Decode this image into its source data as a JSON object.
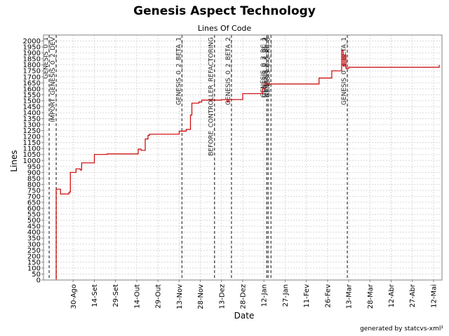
{
  "chart_data": {
    "type": "line",
    "title": "Genesis Aspect Technology",
    "subtitle": "Lines Of Code",
    "xlabel": "Date",
    "ylabel": "Lines",
    "footer": "generated by statcvs-xml²",
    "ylim": [
      0,
      2050
    ],
    "yticks": [
      0,
      50,
      100,
      150,
      200,
      250,
      300,
      350,
      400,
      450,
      500,
      550,
      600,
      650,
      700,
      750,
      800,
      850,
      900,
      950,
      1000,
      1050,
      1100,
      1150,
      1200,
      1250,
      1300,
      1350,
      1400,
      1450,
      1500,
      1550,
      1600,
      1650,
      1700,
      1750,
      1800,
      1850,
      1900,
      1950,
      2000
    ],
    "xlim": [
      "2004-08-09",
      "2005-05-18"
    ],
    "xticks": [
      {
        "date": "2004-08-30",
        "label": "30-Ago"
      },
      {
        "date": "2004-09-14",
        "label": "14-Set"
      },
      {
        "date": "2004-09-29",
        "label": "29-Set"
      },
      {
        "date": "2004-10-14",
        "label": "14-Out"
      },
      {
        "date": "2004-10-29",
        "label": "29-Out"
      },
      {
        "date": "2004-11-13",
        "label": "13-Nov"
      },
      {
        "date": "2004-11-28",
        "label": "28-Nov"
      },
      {
        "date": "2004-12-13",
        "label": "13-Dez"
      },
      {
        "date": "2004-12-28",
        "label": "28-Dez"
      },
      {
        "date": "2005-01-12",
        "label": "12-Jan"
      },
      {
        "date": "2005-01-27",
        "label": "27-Jan"
      },
      {
        "date": "2005-02-11",
        "label": "11-Fev"
      },
      {
        "date": "2005-02-26",
        "label": "26-Fev"
      },
      {
        "date": "2005-03-13",
        "label": "13-Mar"
      },
      {
        "date": "2005-03-28",
        "label": "28-Mar"
      },
      {
        "date": "2005-04-12",
        "label": "12-Abr"
      },
      {
        "date": "2005-04-27",
        "label": "27-Abr"
      },
      {
        "date": "2005-05-12",
        "label": "12-Mai"
      }
    ],
    "grid": true,
    "series": [
      {
        "color": "#cc0000",
        "points": [
          [
            "2004-08-18",
            0
          ],
          [
            "2004-08-18",
            760
          ],
          [
            "2004-08-21",
            760
          ],
          [
            "2004-08-21",
            720
          ],
          [
            "2004-08-27",
            720
          ],
          [
            "2004-08-27",
            735
          ],
          [
            "2004-08-28",
            735
          ],
          [
            "2004-08-28",
            900
          ],
          [
            "2004-09-01",
            900
          ],
          [
            "2004-09-01",
            930
          ],
          [
            "2004-09-04",
            930
          ],
          [
            "2004-09-04",
            920
          ],
          [
            "2004-09-05",
            920
          ],
          [
            "2004-09-05",
            980
          ],
          [
            "2004-09-14",
            980
          ],
          [
            "2004-09-14",
            1050
          ],
          [
            "2004-09-23",
            1050
          ],
          [
            "2004-09-23",
            1055
          ],
          [
            "2004-10-15",
            1055
          ],
          [
            "2004-10-15",
            1095
          ],
          [
            "2004-10-17",
            1095
          ],
          [
            "2004-10-17",
            1085
          ],
          [
            "2004-10-20",
            1085
          ],
          [
            "2004-10-20",
            1180
          ],
          [
            "2004-10-22",
            1180
          ],
          [
            "2004-10-22",
            1210
          ],
          [
            "2004-10-23",
            1210
          ],
          [
            "2004-10-23",
            1220
          ],
          [
            "2004-11-13",
            1220
          ],
          [
            "2004-11-13",
            1245
          ],
          [
            "2004-11-18",
            1245
          ],
          [
            "2004-11-18",
            1260
          ],
          [
            "2004-11-21",
            1260
          ],
          [
            "2004-11-21",
            1380
          ],
          [
            "2004-11-22",
            1380
          ],
          [
            "2004-11-22",
            1480
          ],
          [
            "2004-11-27",
            1480
          ],
          [
            "2004-11-27",
            1490
          ],
          [
            "2004-11-29",
            1490
          ],
          [
            "2004-11-29",
            1505
          ],
          [
            "2004-12-13",
            1505
          ],
          [
            "2004-12-13",
            1510
          ],
          [
            "2004-12-17",
            1510
          ],
          [
            "2004-12-17",
            1490
          ],
          [
            "2004-12-18",
            1490
          ],
          [
            "2004-12-18",
            1510
          ],
          [
            "2004-12-28",
            1510
          ],
          [
            "2004-12-28",
            1560
          ],
          [
            "2005-01-11",
            1560
          ],
          [
            "2005-01-11",
            1600
          ],
          [
            "2005-01-13",
            1600
          ],
          [
            "2005-01-13",
            1650
          ],
          [
            "2005-01-14",
            1650
          ],
          [
            "2005-01-14",
            1640
          ],
          [
            "2005-02-20",
            1640
          ],
          [
            "2005-02-20",
            1690
          ],
          [
            "2005-03-01",
            1690
          ],
          [
            "2005-03-01",
            1750
          ],
          [
            "2005-03-08",
            1750
          ],
          [
            "2005-03-08",
            1920
          ],
          [
            "2005-03-09",
            1920
          ],
          [
            "2005-03-09",
            1790
          ],
          [
            "2005-03-10",
            1790
          ],
          [
            "2005-03-10",
            1880
          ],
          [
            "2005-03-11",
            1880
          ],
          [
            "2005-03-11",
            1770
          ],
          [
            "2005-03-13",
            1770
          ],
          [
            "2005-03-13",
            1780
          ],
          [
            "2005-05-16",
            1780
          ],
          [
            "2005-05-16",
            1800
          ]
        ]
      }
    ],
    "markers": [
      {
        "date": "2004-08-13",
        "label": "GENESIS_0_1"
      },
      {
        "date": "2004-08-18",
        "label": "IMPORT_GENESIS_0_2_DEV"
      },
      {
        "date": "2004-11-15",
        "label": "GENESIS_0_2_BETA_1"
      },
      {
        "date": "2004-12-08",
        "label": "BEFORE_CONTROLLER_REFACTORING"
      },
      {
        "date": "2004-12-20",
        "label": "GENESIS_0_2_BETA_2"
      },
      {
        "date": "2005-01-14",
        "label": "GENESIS_0_2_RC_1"
      },
      {
        "date": "2005-01-15",
        "label": "GENESIS_0_2_RC_2"
      },
      {
        "date": "2005-01-17",
        "label": "GENESIS_0_2_RC_3"
      },
      {
        "date": "2005-03-12",
        "label": "GENESIS_0_3_BETA_1"
      }
    ]
  }
}
